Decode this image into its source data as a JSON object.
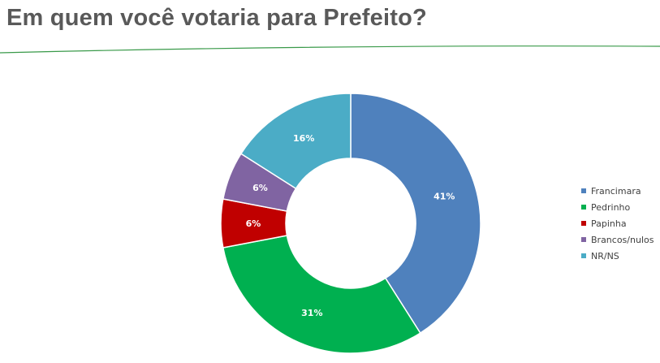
{
  "header": {
    "title": "Em quem você votaria para Prefeito?"
  },
  "chart_data": {
    "type": "pie",
    "style": "donut",
    "categories": [
      "Francimara",
      "Pedrinho",
      "Papinha",
      "Brancos/nulos",
      "NR/NS"
    ],
    "values": [
      41,
      31,
      6,
      6,
      16
    ],
    "labels": [
      "41%",
      "31%",
      "6%",
      "6%",
      "16%"
    ],
    "colors": [
      "#4f81bd",
      "#00b050",
      "#c00000",
      "#8064a2",
      "#4bacc6"
    ],
    "legend_position": "right"
  }
}
